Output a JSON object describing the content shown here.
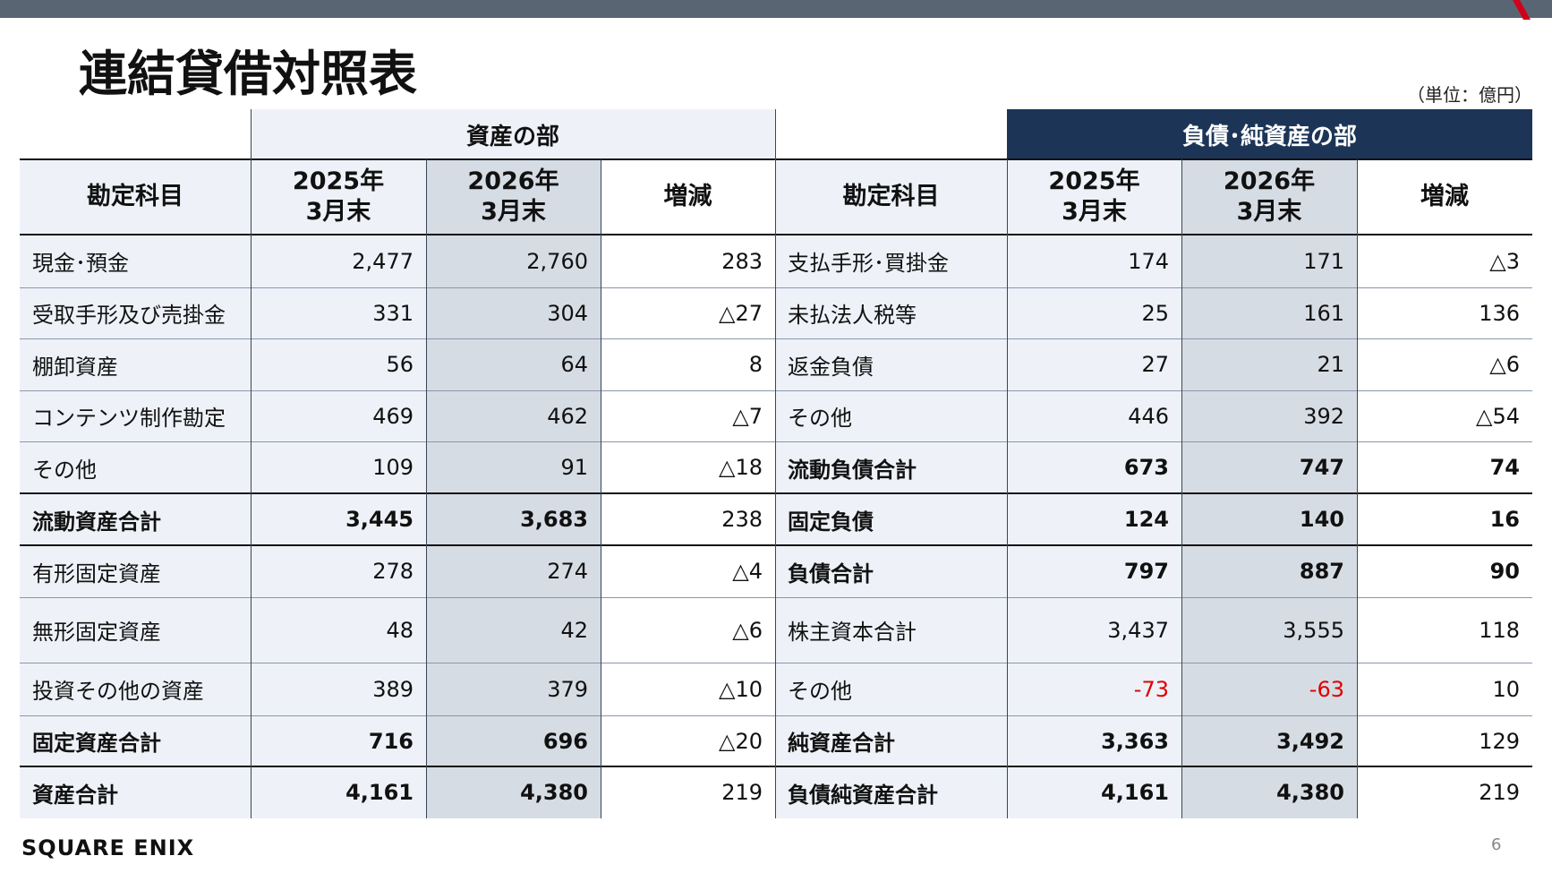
{
  "header": {
    "title": "連結貸借対照表",
    "unit": "（単位：億円）"
  },
  "table": {
    "section_headers": [
      "資産の部",
      "負債･純資産の部"
    ],
    "column_headers": [
      [
        "勘定科目"
      ],
      [
        "2025年",
        "3月末"
      ],
      [
        "2026年",
        "3月末"
      ],
      [
        "増減"
      ],
      [
        "勘定科目"
      ],
      [
        "2025年",
        "3月末"
      ],
      [
        "2026年",
        "3月末"
      ],
      [
        "増減"
      ]
    ],
    "rows": [
      [
        "現金･預金",
        "2,477",
        "2,760",
        "283",
        "支払手形･買掛金",
        "174",
        "171",
        "△3"
      ],
      [
        "受取手形及び売掛金",
        "331",
        "304",
        "△27",
        "未払法人税等",
        "25",
        "161",
        "136"
      ],
      [
        "棚卸資産",
        "56",
        "64",
        "8",
        "返金負債",
        "27",
        "21",
        "△6"
      ],
      [
        "コンテンツ制作勘定",
        "469",
        "462",
        "△7",
        "その他",
        "446",
        "392",
        "△54"
      ],
      [
        "その他",
        "109",
        "91",
        "△18",
        "流動負債合計",
        "673",
        "747",
        "74"
      ],
      [
        "流動資産合計",
        "3,445",
        "3,683",
        "238",
        "固定負債",
        "124",
        "140",
        "16"
      ],
      [
        "有形固定資産",
        "278",
        "274",
        "△4",
        "負債合計",
        "797",
        "887",
        "90"
      ],
      [
        "無形固定資産",
        "48",
        "42",
        "△6",
        "株主資本合計",
        "3,437",
        "3,555",
        "118"
      ],
      [
        "投資その他の資産",
        "389",
        "379",
        "△10",
        "その他",
        "-73",
        "-63",
        "10"
      ],
      [
        "固定資産合計",
        "716",
        "696",
        "△20",
        "純資産合計",
        "3,363",
        "3,492",
        "129"
      ],
      [
        "資産合計",
        "4,161",
        "4,380",
        "219",
        "負債純資産合計",
        "4,161",
        "4,380",
        "219"
      ]
    ]
  },
  "footer": {
    "logo": "SQUARE ENIX",
    "page": "6"
  }
}
